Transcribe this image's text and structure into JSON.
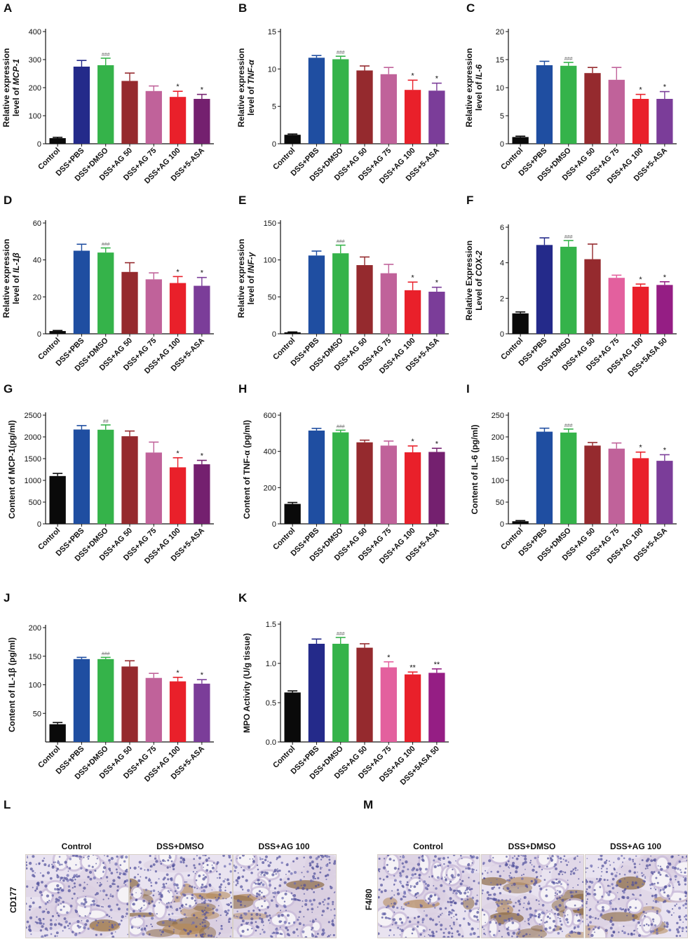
{
  "colors": {
    "control": "#0a0a0a",
    "dss_pbs": "#1f4ea1",
    "dss_pbs_navy": "#242a8a",
    "dss_dmso": "#35b34a",
    "ag50": "#952a2e",
    "ag75": "#c0629a",
    "ag75_pink": "#e3609e",
    "ag100": "#e9202a",
    "asa": "#7b3d99",
    "asa_purple": "#74206f",
    "asa_magenta": "#951e84"
  },
  "categories_standard": [
    "Control",
    "DSS+PBS",
    "DSS+DMSO",
    "DSS+AG 50",
    "DSS+AG 75",
    "DSS+AG 100",
    "DSS+5-ASA"
  ],
  "categories_alt": [
    "Control",
    "DSS+PBS",
    "DSS+DMSO",
    "DSS+AG 50",
    "DSS+AG 75",
    "DSS+AG 100",
    "DSS+5ASA 50"
  ],
  "chart_data": [
    {
      "id": "A",
      "type": "bar",
      "ylabel_line1": "Relative expression",
      "ylabel_line2_prefix": "level of ",
      "ylabel_line2_italic": "MCP-1",
      "ylim": [
        0,
        400
      ],
      "yticks": [
        0,
        100,
        200,
        300,
        400
      ],
      "values": [
        20,
        275,
        280,
        224,
        188,
        167,
        160
      ],
      "errors": [
        3,
        22,
        25,
        28,
        18,
        20,
        16
      ],
      "annotations": [
        "",
        "",
        "###",
        "",
        "",
        "*",
        "*"
      ],
      "colorKeys": [
        "control",
        "dss_pbs_navy",
        "dss_dmso",
        "ag50",
        "ag75",
        "ag100",
        "asa_purple"
      ],
      "catKey": "categories_standard"
    },
    {
      "id": "B",
      "type": "bar",
      "ylabel_line1": "Relative expression",
      "ylabel_line2_prefix": "level of ",
      "ylabel_line2_italic": "TNF-α",
      "ylim": [
        0,
        15
      ],
      "yticks": [
        0,
        5,
        10,
        15
      ],
      "values": [
        1.2,
        11.5,
        11.3,
        9.8,
        9.3,
        7.2,
        7.1
      ],
      "errors": [
        0.1,
        0.3,
        0.4,
        0.6,
        0.9,
        1.3,
        1.0
      ],
      "annotations": [
        "",
        "",
        "###",
        "",
        "",
        "*",
        "*"
      ],
      "colorKeys": [
        "control",
        "dss_pbs",
        "dss_dmso",
        "ag50",
        "ag75",
        "ag100",
        "asa"
      ],
      "catKey": "categories_standard"
    },
    {
      "id": "C",
      "type": "bar",
      "ylabel_line1": "Relative expression",
      "ylabel_line2_prefix": "level of ",
      "ylabel_line2_italic": "IL-6",
      "ylim": [
        0,
        20
      ],
      "yticks": [
        0,
        5,
        10,
        15,
        20
      ],
      "values": [
        1.2,
        14,
        13.9,
        12.6,
        11.4,
        8.0,
        8.0
      ],
      "errors": [
        0.15,
        0.7,
        0.6,
        1.0,
        2.2,
        0.8,
        1.3
      ],
      "annotations": [
        "",
        "",
        "###",
        "",
        "",
        "*",
        "*"
      ],
      "colorKeys": [
        "control",
        "dss_pbs",
        "dss_dmso",
        "ag50",
        "ag75",
        "ag100",
        "asa"
      ],
      "catKey": "categories_standard"
    },
    {
      "id": "D",
      "type": "bar",
      "ylabel_line1": "Relative expression",
      "ylabel_line2_prefix": "level of ",
      "ylabel_line2_italic": "IL-1β",
      "ylim": [
        0,
        60
      ],
      "yticks": [
        0,
        20,
        40,
        60
      ],
      "values": [
        1.5,
        45,
        44,
        33.5,
        29.5,
        27.5,
        26
      ],
      "errors": [
        0.3,
        3.5,
        2.5,
        5,
        3.5,
        3.5,
        4.5
      ],
      "annotations": [
        "",
        "",
        "###",
        "",
        "",
        "*",
        "*"
      ],
      "colorKeys": [
        "control",
        "dss_pbs",
        "dss_dmso",
        "ag50",
        "ag75",
        "ag100",
        "asa"
      ],
      "catKey": "categories_standard"
    },
    {
      "id": "E",
      "type": "bar",
      "ylabel_line1": "Relative expression",
      "ylabel_line2_prefix": "level of ",
      "ylabel_line2_italic": "INF-γ",
      "ylim": [
        0,
        150
      ],
      "yticks": [
        0,
        50,
        100,
        150
      ],
      "values": [
        2,
        106,
        109,
        93,
        82,
        59,
        57
      ],
      "errors": [
        0.5,
        6,
        11,
        11,
        12,
        11,
        6
      ],
      "annotations": [
        "",
        "",
        "###",
        "",
        "",
        "*",
        "*"
      ],
      "colorKeys": [
        "control",
        "dss_pbs",
        "dss_dmso",
        "ag50",
        "ag75",
        "ag100",
        "asa"
      ],
      "catKey": "categories_standard"
    },
    {
      "id": "F",
      "type": "bar",
      "ylabel_line1": "Relative Expression",
      "ylabel_line2_prefix": "Level of ",
      "ylabel_line2_italic": "COX-2",
      "ylim": [
        0,
        6
      ],
      "yticks": [
        0,
        2,
        4,
        6
      ],
      "values": [
        1.15,
        5.0,
        4.9,
        4.2,
        3.15,
        2.65,
        2.75
      ],
      "errors": [
        0.08,
        0.4,
        0.35,
        0.85,
        0.15,
        0.15,
        0.18
      ],
      "annotations": [
        "",
        "",
        "###",
        "",
        "",
        "*",
        "*"
      ],
      "colorKeys": [
        "control",
        "dss_pbs_navy",
        "dss_dmso",
        "ag50",
        "ag75_pink",
        "ag100",
        "asa_magenta"
      ],
      "catKey": "categories_alt"
    },
    {
      "id": "G",
      "type": "bar",
      "ylabel": "Content of MCP-1(pg/ml)",
      "ylim": [
        0,
        2500
      ],
      "yticks": [
        0,
        500,
        1000,
        1500,
        2000,
        2500
      ],
      "values": [
        1100,
        2170,
        2165,
        2015,
        1640,
        1300,
        1370
      ],
      "errors": [
        60,
        90,
        110,
        120,
        240,
        220,
        90
      ],
      "annotations": [
        "",
        "",
        "##",
        "",
        "",
        "*",
        "*"
      ],
      "colorKeys": [
        "control",
        "dss_pbs",
        "dss_dmso",
        "ag50",
        "ag75",
        "ag100",
        "asa_purple"
      ],
      "catKey": "categories_standard"
    },
    {
      "id": "H",
      "type": "bar",
      "ylabel": "Content of TNF-α (pg/ml)",
      "ylim": [
        0,
        600
      ],
      "yticks": [
        0,
        200,
        400,
        600
      ],
      "values": [
        110,
        515,
        505,
        450,
        432,
        395,
        397
      ],
      "errors": [
        8,
        12,
        12,
        12,
        25,
        35,
        20
      ],
      "annotations": [
        "",
        "",
        "###",
        "",
        "",
        "*",
        "*"
      ],
      "colorKeys": [
        "control",
        "dss_pbs",
        "dss_dmso",
        "ag50",
        "ag75",
        "ag100",
        "asa_purple"
      ],
      "catKey": "categories_standard"
    },
    {
      "id": "I",
      "type": "bar",
      "ylabel": "Content of IL-6 (pg/ml)",
      "ylim": [
        0,
        250
      ],
      "yticks": [
        0,
        50,
        100,
        150,
        200,
        250
      ],
      "values": [
        6,
        212,
        210,
        180,
        173,
        151,
        145
      ],
      "errors": [
        1.5,
        8,
        8,
        7,
        13,
        14,
        14
      ],
      "annotations": [
        "",
        "",
        "###",
        "",
        "",
        "*",
        "*"
      ],
      "colorKeys": [
        "control",
        "dss_pbs",
        "dss_dmso",
        "ag50",
        "ag75",
        "ag100",
        "asa"
      ],
      "catKey": "categories_standard"
    },
    {
      "id": "J",
      "type": "bar",
      "ylabel": "Content of IL-1β (pg/ml)",
      "ylim": [
        0,
        200
      ],
      "yticks": [
        50,
        100,
        150,
        200
      ],
      "values": [
        31,
        145,
        145,
        132,
        112,
        106,
        102
      ],
      "errors": [
        3,
        3,
        3,
        10,
        8,
        7,
        7
      ],
      "annotations": [
        "",
        "",
        "###",
        "",
        "",
        "*",
        "*"
      ],
      "colorKeys": [
        "control",
        "dss_pbs",
        "dss_dmso",
        "ag50",
        "ag75",
        "ag100",
        "asa"
      ],
      "catKey": "categories_standard"
    },
    {
      "id": "K",
      "type": "bar",
      "ylabel": "MPO Activity (U/g tissue)",
      "ylim": [
        0,
        1.5
      ],
      "yticks": [
        0,
        0.5,
        1.0,
        1.5
      ],
      "ytickLabels": [
        "0.0",
        "0.5",
        "1.0",
        "1.5"
      ],
      "values": [
        0.63,
        1.25,
        1.25,
        1.2,
        0.95,
        0.86,
        0.88
      ],
      "errors": [
        0.02,
        0.06,
        0.08,
        0.05,
        0.07,
        0.03,
        0.05
      ],
      "annotations": [
        "",
        "",
        "###",
        "",
        "*",
        "**",
        "**"
      ],
      "colorKeys": [
        "control",
        "dss_pbs_navy",
        "dss_dmso",
        "ag50",
        "ag75_pink",
        "ag100",
        "asa_magenta"
      ],
      "catKey": "categories_alt"
    }
  ],
  "histology": {
    "L": {
      "letter": "L",
      "row_label": "CD177",
      "columns": [
        "Control",
        "DSS+DMSO",
        "DSS+AG 100"
      ]
    },
    "M": {
      "letter": "M",
      "row_label": "F4/80",
      "columns": [
        "Control",
        "DSS+DMSO",
        "DSS+AG 100"
      ]
    }
  }
}
